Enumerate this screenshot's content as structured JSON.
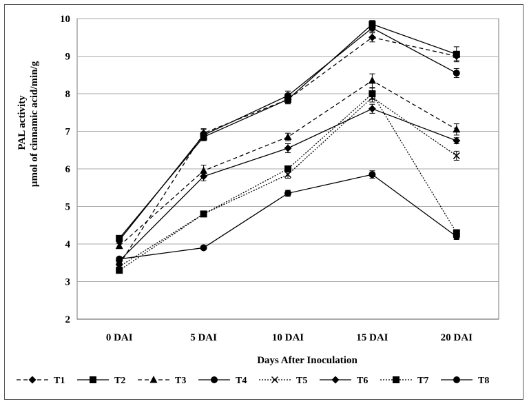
{
  "chart_data": {
    "type": "line",
    "title": "",
    "xlabel": "Days After Inoculation",
    "ylabel_line1": "PAL activity",
    "ylabel_line2": "µmol of cinnamic acid/min/g",
    "categories": [
      "0 DAI",
      "5 DAI",
      "10 DAI",
      "15 DAI",
      "20 DAI"
    ],
    "ylim": [
      2,
      10
    ],
    "yticks": [
      "2",
      "3",
      "4",
      "5",
      "6",
      "7",
      "8",
      "9",
      "10"
    ],
    "grid": true,
    "legend_position": "bottom",
    "series": [
      {
        "name": "T1",
        "values": [
          3.45,
          6.95,
          7.85,
          9.5,
          9.0
        ],
        "errors": [
          0.06,
          0.12,
          0.1,
          0.12,
          0.12
        ],
        "marker": "diamond",
        "dash": "dashed"
      },
      {
        "name": "T2",
        "values": [
          4.15,
          6.85,
          7.85,
          9.85,
          9.05
        ],
        "errors": [
          0.06,
          0.1,
          0.12,
          0.1,
          0.2
        ],
        "marker": "square",
        "dash": "solid"
      },
      {
        "name": "T3",
        "values": [
          3.95,
          5.95,
          6.85,
          8.35,
          7.05
        ],
        "errors": [
          0.06,
          0.15,
          0.1,
          0.18,
          0.15
        ],
        "marker": "triangle",
        "dash": "dashed"
      },
      {
        "name": "T4",
        "values": [
          3.6,
          3.9,
          5.35,
          5.85,
          4.2
        ],
        "errors": [
          0.05,
          0.05,
          0.08,
          0.1,
          0.08
        ],
        "marker": "circle",
        "dash": "solid"
      },
      {
        "name": "T5",
        "values": [
          3.4,
          4.8,
          5.85,
          7.9,
          6.35
        ],
        "errors": [
          0.05,
          0.06,
          0.1,
          0.12,
          0.12
        ],
        "marker": "x",
        "dash": "dotted"
      },
      {
        "name": "T6",
        "values": [
          3.55,
          5.8,
          6.55,
          7.6,
          6.75
        ],
        "errors": [
          0.06,
          0.12,
          0.12,
          0.12,
          0.08
        ],
        "marker": "diamond",
        "dash": "solid"
      },
      {
        "name": "T7",
        "values": [
          3.3,
          4.8,
          6.0,
          8.0,
          4.3
        ],
        "errors": [
          0.05,
          0.06,
          0.08,
          0.15,
          0.08
        ],
        "marker": "square",
        "dash": "dotted"
      },
      {
        "name": "T8",
        "values": [
          4.1,
          6.9,
          7.95,
          9.75,
          8.55
        ],
        "errors": [
          0.06,
          0.15,
          0.12,
          0.1,
          0.12
        ],
        "marker": "circle",
        "dash": "solid"
      }
    ]
  }
}
